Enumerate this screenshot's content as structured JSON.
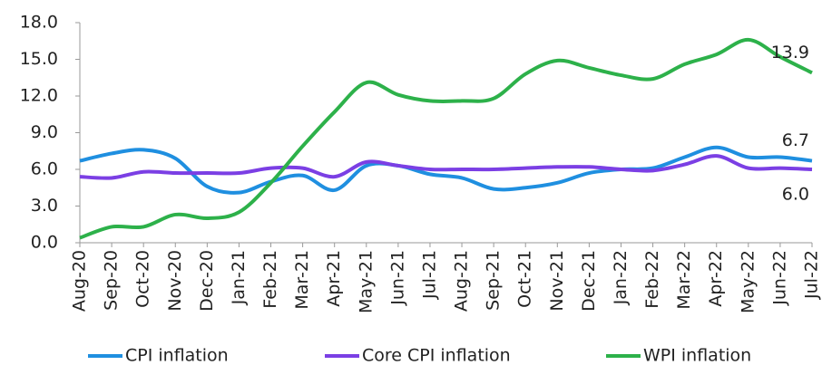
{
  "chart_data": {
    "type": "line",
    "categories": [
      "Aug-20",
      "Sep-20",
      "Oct-20",
      "Nov-20",
      "Dec-20",
      "Jan-21",
      "Feb-21",
      "Mar-21",
      "Apr-21",
      "May-21",
      "Jun-21",
      "Jul-21",
      "Aug-21",
      "Sep-21",
      "Oct-21",
      "Nov-21",
      "Dec-21",
      "Jan-22",
      "Feb-22",
      "Mar-22",
      "Apr-22",
      "May-22",
      "Jun-22",
      "Jul-22"
    ],
    "series": [
      {
        "name": "CPI inflation",
        "color": "#1f8fe0",
        "values": [
          6.7,
          7.3,
          7.6,
          6.9,
          4.6,
          4.1,
          5.0,
          5.5,
          4.3,
          6.3,
          6.3,
          5.6,
          5.3,
          4.4,
          4.5,
          4.9,
          5.7,
          6.0,
          6.1,
          7.0,
          7.8,
          7.0,
          7.0,
          6.7
        ],
        "value_labels": [
          null,
          null,
          null,
          null,
          null,
          null,
          null,
          null,
          null,
          null,
          null,
          null,
          null,
          null,
          null,
          null,
          null,
          null,
          null,
          null,
          null,
          null,
          null,
          "6.7"
        ]
      },
      {
        "name": "Core CPI inflation",
        "color": "#7b3fe4",
        "values": [
          5.4,
          5.3,
          5.8,
          5.7,
          5.7,
          5.7,
          6.1,
          6.1,
          5.4,
          6.6,
          6.3,
          6.0,
          6.0,
          6.0,
          6.1,
          6.2,
          6.2,
          6.0,
          5.9,
          6.4,
          7.1,
          6.1,
          6.1,
          6.0
        ],
        "value_labels": [
          null,
          null,
          null,
          null,
          null,
          null,
          null,
          null,
          null,
          null,
          null,
          null,
          null,
          null,
          null,
          null,
          null,
          null,
          null,
          null,
          null,
          null,
          null,
          "6.0"
        ]
      },
      {
        "name": "WPI inflation",
        "color": "#2db14a",
        "values": [
          0.4,
          1.3,
          1.3,
          2.3,
          2.0,
          2.5,
          4.9,
          7.9,
          10.7,
          13.1,
          12.1,
          11.6,
          11.6,
          11.8,
          13.8,
          14.9,
          14.3,
          13.7,
          13.4,
          14.6,
          15.4,
          16.6,
          15.2,
          13.9
        ],
        "value_labels": [
          null,
          null,
          null,
          null,
          null,
          null,
          null,
          null,
          null,
          null,
          null,
          null,
          null,
          null,
          null,
          null,
          null,
          null,
          null,
          null,
          null,
          null,
          null,
          "13.9"
        ]
      }
    ],
    "ylim": [
      0,
      18
    ],
    "yticks": [
      {
        "value": 0,
        "label": "0.0"
      },
      {
        "value": 3,
        "label": "3.0"
      },
      {
        "value": 6,
        "label": "6.0"
      },
      {
        "value": 9,
        "label": "9.0"
      },
      {
        "value": 12,
        "label": "12.0"
      },
      {
        "value": 15,
        "label": "15.0"
      },
      {
        "value": 18,
        "label": "18.0"
      }
    ]
  }
}
